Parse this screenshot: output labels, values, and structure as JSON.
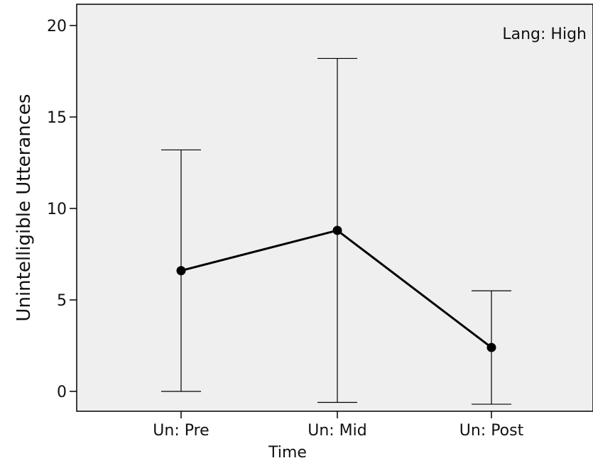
{
  "chart_data": {
    "type": "line",
    "panel_label": "Lang: High",
    "xlabel": "Time",
    "ylabel": "Unintelligible Utterances",
    "categories": [
      "Un: Pre",
      "Un: Mid",
      "Un: Post"
    ],
    "series": [
      {
        "values": [
          6.6,
          8.8,
          2.4
        ],
        "error_low": [
          0.0,
          -0.6,
          -0.7
        ],
        "error_high": [
          13.2,
          18.2,
          5.5
        ]
      }
    ],
    "yticks": [
      "0",
      "5",
      "10",
      "15",
      "20"
    ],
    "ylim": [
      -1.1,
      21.2
    ],
    "grid": false,
    "plot_background": "#efefef",
    "line_color": "#000000"
  }
}
